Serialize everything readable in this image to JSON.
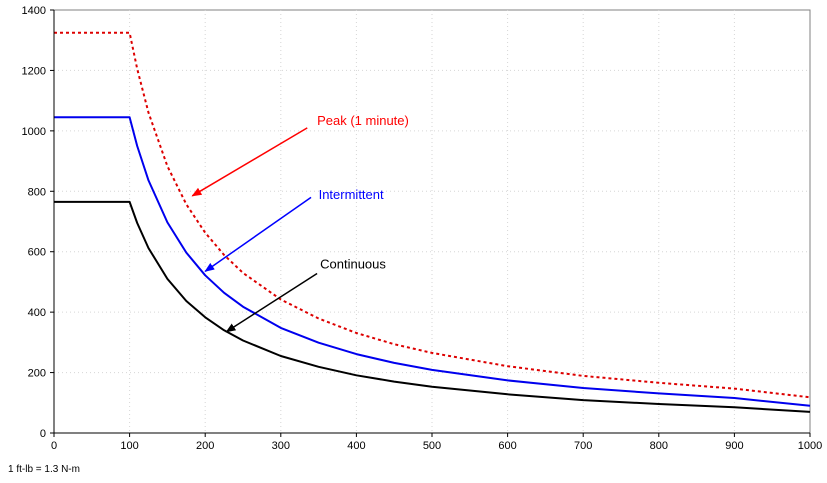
{
  "chart_data": {
    "type": "line",
    "title": "",
    "xlabel": "",
    "ylabel": "",
    "xlim": [
      0,
      1000
    ],
    "ylim": [
      0,
      1400
    ],
    "x_ticks": [
      0,
      100,
      200,
      300,
      400,
      500,
      600,
      700,
      800,
      900,
      1000
    ],
    "y_ticks": [
      0,
      200,
      400,
      600,
      800,
      1000,
      1200,
      1400
    ],
    "grid": "dotted",
    "series": [
      {
        "color": "#dd0000",
        "style": "dashed",
        "x": [
          0,
          100,
          110,
          125,
          150,
          175,
          200,
          225,
          250,
          300,
          350,
          400,
          450,
          500,
          600,
          700,
          800,
          900,
          1000
        ],
        "y": [
          1325,
          1325,
          1205,
          1060,
          883,
          757,
          663,
          589,
          530,
          442,
          379,
          331,
          294,
          265,
          221,
          189,
          166,
          147,
          118
        ]
      },
      {
        "color": "#0000ee",
        "style": "solid",
        "x": [
          0,
          100,
          110,
          125,
          150,
          175,
          200,
          225,
          250,
          300,
          350,
          400,
          450,
          500,
          600,
          700,
          800,
          900,
          1000
        ],
        "y": [
          1045,
          1045,
          950,
          836,
          697,
          597,
          522,
          464,
          418,
          348,
          299,
          261,
          232,
          209,
          174,
          149,
          131,
          116,
          90
        ]
      },
      {
        "color": "#000000",
        "style": "solid",
        "x": [
          0,
          100,
          110,
          125,
          150,
          175,
          200,
          225,
          250,
          300,
          350,
          400,
          450,
          500,
          600,
          700,
          800,
          900,
          1000
        ],
        "y": [
          765,
          765,
          695,
          612,
          510,
          437,
          383,
          340,
          306,
          255,
          219,
          191,
          170,
          153,
          128,
          109,
          96,
          85,
          70
        ]
      }
    ],
    "annotations": [
      {
        "text": "Peak (1 minute)",
        "color": "#ff0000",
        "label_at": [
          348,
          1020
        ],
        "arrow_from": [
          335,
          1010
        ],
        "arrow_to": [
          183,
          785
        ]
      },
      {
        "text": "Intermittent",
        "color": "#0000ff",
        "label_at": [
          350,
          775
        ],
        "arrow_from": [
          340,
          780
        ],
        "arrow_to": [
          200,
          535
        ]
      },
      {
        "text": "Continuous",
        "color": "#000000",
        "label_at": [
          352,
          545
        ],
        "arrow_from": [
          348,
          528
        ],
        "arrow_to": [
          228,
          335
        ]
      }
    ],
    "footnote": "1 ft-lb = 1.3 N-m"
  }
}
